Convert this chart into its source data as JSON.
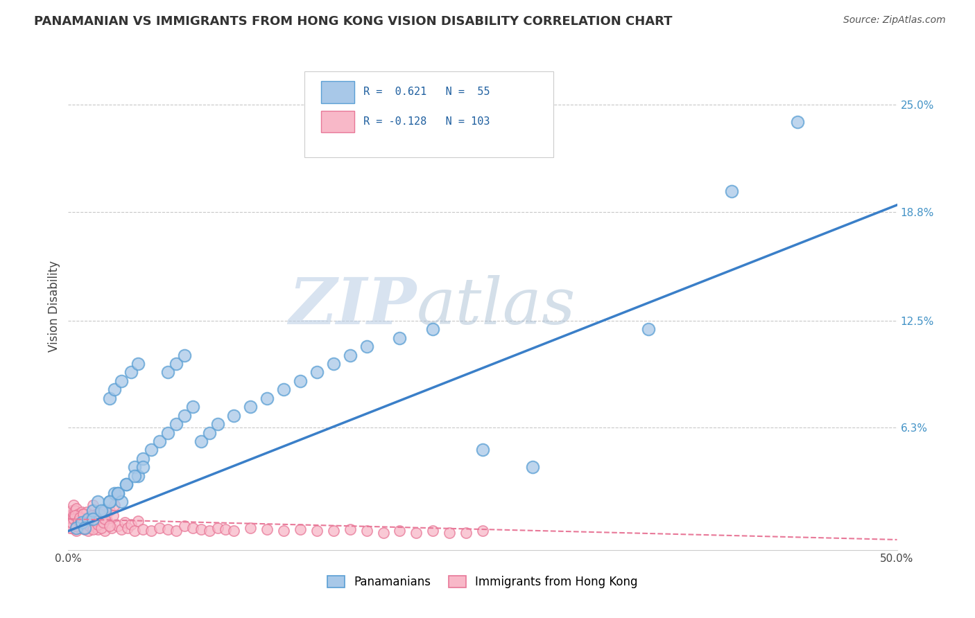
{
  "title": "PANAMANIAN VS IMMIGRANTS FROM HONG KONG VISION DISABILITY CORRELATION CHART",
  "source": "Source: ZipAtlas.com",
  "ylabel": "Vision Disability",
  "xlim": [
    0.0,
    0.5
  ],
  "ylim": [
    -0.008,
    0.275
  ],
  "xtick_labels": [
    "0.0%",
    "50.0%"
  ],
  "xtick_positions": [
    0.0,
    0.5
  ],
  "ytick_labels": [
    "6.3%",
    "12.5%",
    "18.8%",
    "25.0%"
  ],
  "ytick_positions": [
    0.063,
    0.125,
    0.188,
    0.25
  ],
  "blue_color": "#a8c8e8",
  "blue_edge_color": "#5a9fd4",
  "pink_color": "#f8b8c8",
  "pink_edge_color": "#e87898",
  "blue_line_color": "#3a7fc8",
  "pink_line_color": "#e87898",
  "grid_color": "#c8c8c8",
  "background_color": "#ffffff",
  "watermark_zip": "ZIP",
  "watermark_atlas": "atlas",
  "blue_line_x0": 0.0,
  "blue_line_y0": 0.003,
  "blue_line_x1": 0.5,
  "blue_line_y1": 0.192,
  "pink_line_x0": 0.0,
  "pink_line_y0": 0.01,
  "pink_line_x1": 0.5,
  "pink_line_y1": -0.002,
  "blue_scatter_x": [
    0.005,
    0.008,
    0.012,
    0.015,
    0.018,
    0.022,
    0.025,
    0.028,
    0.03,
    0.032,
    0.035,
    0.04,
    0.042,
    0.045,
    0.05,
    0.055,
    0.06,
    0.065,
    0.07,
    0.075,
    0.025,
    0.028,
    0.032,
    0.038,
    0.042,
    0.06,
    0.065,
    0.07,
    0.01,
    0.015,
    0.02,
    0.025,
    0.03,
    0.035,
    0.04,
    0.045,
    0.08,
    0.085,
    0.09,
    0.1,
    0.11,
    0.12,
    0.13,
    0.14,
    0.15,
    0.16,
    0.17,
    0.18,
    0.2,
    0.22,
    0.25,
    0.28,
    0.44,
    0.4,
    0.35
  ],
  "blue_scatter_y": [
    0.005,
    0.008,
    0.01,
    0.015,
    0.02,
    0.015,
    0.02,
    0.025,
    0.025,
    0.02,
    0.03,
    0.04,
    0.035,
    0.045,
    0.05,
    0.055,
    0.06,
    0.065,
    0.07,
    0.075,
    0.08,
    0.085,
    0.09,
    0.095,
    0.1,
    0.095,
    0.1,
    0.105,
    0.005,
    0.01,
    0.015,
    0.02,
    0.025,
    0.03,
    0.035,
    0.04,
    0.055,
    0.06,
    0.065,
    0.07,
    0.075,
    0.08,
    0.085,
    0.09,
    0.095,
    0.1,
    0.105,
    0.11,
    0.115,
    0.12,
    0.05,
    0.04,
    0.24,
    0.2,
    0.12
  ],
  "pink_scatter_x": [
    0.001,
    0.001,
    0.002,
    0.002,
    0.002,
    0.003,
    0.003,
    0.003,
    0.004,
    0.004,
    0.004,
    0.005,
    0.005,
    0.005,
    0.006,
    0.006,
    0.007,
    0.007,
    0.008,
    0.008,
    0.009,
    0.009,
    0.01,
    0.01,
    0.011,
    0.011,
    0.012,
    0.012,
    0.013,
    0.014,
    0.015,
    0.015,
    0.016,
    0.017,
    0.018,
    0.019,
    0.02,
    0.021,
    0.022,
    0.023,
    0.024,
    0.025,
    0.026,
    0.027,
    0.028,
    0.03,
    0.032,
    0.034,
    0.036,
    0.038,
    0.04,
    0.042,
    0.045,
    0.05,
    0.055,
    0.06,
    0.065,
    0.07,
    0.075,
    0.08,
    0.085,
    0.09,
    0.095,
    0.1,
    0.11,
    0.12,
    0.13,
    0.14,
    0.15,
    0.16,
    0.17,
    0.18,
    0.19,
    0.2,
    0.21,
    0.22,
    0.23,
    0.24,
    0.25,
    0.001,
    0.002,
    0.003,
    0.004,
    0.005,
    0.006,
    0.007,
    0.008,
    0.009,
    0.01,
    0.011,
    0.012,
    0.013,
    0.014,
    0.015,
    0.016,
    0.017,
    0.018,
    0.019,
    0.02,
    0.021,
    0.022,
    0.025
  ],
  "pink_scatter_y": [
    0.008,
    0.012,
    0.005,
    0.01,
    0.015,
    0.006,
    0.012,
    0.018,
    0.004,
    0.009,
    0.015,
    0.003,
    0.01,
    0.016,
    0.007,
    0.013,
    0.005,
    0.012,
    0.008,
    0.014,
    0.006,
    0.013,
    0.004,
    0.011,
    0.007,
    0.014,
    0.003,
    0.01,
    0.008,
    0.005,
    0.012,
    0.018,
    0.006,
    0.013,
    0.004,
    0.01,
    0.007,
    0.014,
    0.003,
    0.011,
    0.008,
    0.015,
    0.005,
    0.012,
    0.018,
    0.006,
    0.004,
    0.008,
    0.005,
    0.007,
    0.003,
    0.009,
    0.004,
    0.003,
    0.005,
    0.004,
    0.003,
    0.006,
    0.005,
    0.004,
    0.003,
    0.005,
    0.004,
    0.003,
    0.005,
    0.004,
    0.003,
    0.004,
    0.003,
    0.003,
    0.004,
    0.003,
    0.002,
    0.003,
    0.002,
    0.003,
    0.002,
    0.002,
    0.003,
    0.005,
    0.008,
    0.01,
    0.012,
    0.006,
    0.009,
    0.011,
    0.007,
    0.013,
    0.005,
    0.008,
    0.01,
    0.006,
    0.012,
    0.004,
    0.009,
    0.011,
    0.007,
    0.013,
    0.005,
    0.008,
    0.01,
    0.006
  ]
}
